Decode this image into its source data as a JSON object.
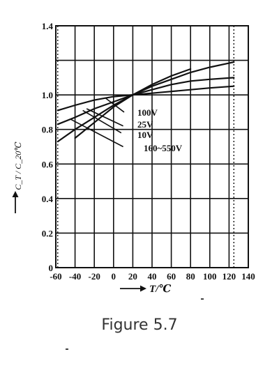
{
  "caption": "Figure 5.7",
  "chart_data": {
    "type": "line",
    "title": "",
    "xlabel": "T/℃",
    "ylabel": "C_T / C_20℃",
    "xlim": [
      -60,
      140
    ],
    "ylim": [
      0,
      1.4
    ],
    "x_ticks": [
      "-60",
      "-40",
      "-20",
      "0",
      "20",
      "40",
      "60",
      "80",
      "100",
      "120",
      "140"
    ],
    "y_ticks": [
      "0",
      "0.2",
      "0.4",
      "0.6",
      "0.8",
      "1.0",
      "1.4"
    ],
    "grid": true,
    "reference_lines_x": [
      -58,
      125
    ],
    "series": [
      {
        "name": "100V",
        "x": [
          -58,
          -40,
          -20,
          0,
          20,
          40,
          60,
          80,
          100,
          125
        ],
        "y": [
          0.91,
          0.94,
          0.97,
          0.99,
          1.0,
          1.01,
          1.02,
          1.03,
          1.04,
          1.05
        ]
      },
      {
        "name": "25V",
        "x": [
          -58,
          -40,
          -20,
          0,
          20,
          40,
          60,
          80,
          100,
          125
        ],
        "y": [
          0.83,
          0.87,
          0.92,
          0.96,
          1.0,
          1.03,
          1.06,
          1.08,
          1.09,
          1.1
        ]
      },
      {
        "name": "10V",
        "x": [
          -58,
          -40,
          -20,
          0,
          20,
          40,
          60,
          80,
          100,
          125
        ],
        "y": [
          0.73,
          0.8,
          0.87,
          0.94,
          1.0,
          1.05,
          1.09,
          1.13,
          1.16,
          1.19
        ]
      },
      {
        "name": "160~550V",
        "x": [
          -40,
          -20,
          0,
          20,
          40,
          60,
          80
        ],
        "y": [
          0.75,
          0.84,
          0.93,
          1.0,
          1.06,
          1.11,
          1.15
        ]
      }
    ]
  }
}
